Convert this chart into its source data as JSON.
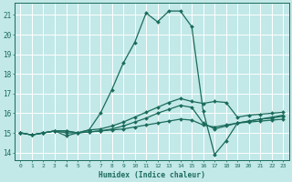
{
  "xlabel": "Humidex (Indice chaleur)",
  "background_color": "#c2e8e8",
  "grid_color": "#ffffff",
  "line_color": "#1a6b5a",
  "xlim": [
    -0.5,
    23.5
  ],
  "ylim": [
    13.6,
    21.6
  ],
  "yticks": [
    14,
    15,
    16,
    17,
    18,
    19,
    20,
    21
  ],
  "xticks": [
    0,
    1,
    2,
    3,
    4,
    5,
    6,
    7,
    8,
    9,
    10,
    11,
    12,
    13,
    14,
    15,
    16,
    17,
    18,
    19,
    20,
    21,
    22,
    23
  ],
  "curves": [
    {
      "x": [
        0,
        1,
        2,
        3,
        4,
        5,
        6,
        7,
        8,
        9,
        10,
        11,
        12,
        13,
        14,
        15,
        16,
        17,
        18,
        19,
        20,
        21,
        22,
        23
      ],
      "y": [
        15.0,
        14.9,
        15.0,
        15.1,
        15.0,
        15.0,
        15.05,
        15.1,
        15.15,
        15.2,
        15.3,
        15.4,
        15.5,
        15.6,
        15.7,
        15.65,
        15.4,
        15.3,
        15.4,
        15.5,
        15.55,
        15.6,
        15.65,
        15.7
      ],
      "marker": "D",
      "markersize": 2.0,
      "linewidth": 0.9
    },
    {
      "x": [
        0,
        1,
        2,
        3,
        4,
        5,
        6,
        7,
        8,
        9,
        10,
        11,
        12,
        13,
        14,
        15,
        16,
        17,
        18,
        19,
        20,
        21,
        22,
        23
      ],
      "y": [
        15.0,
        14.9,
        15.0,
        15.1,
        14.85,
        15.0,
        15.05,
        15.1,
        15.2,
        15.35,
        15.55,
        15.75,
        16.0,
        16.2,
        16.4,
        16.3,
        15.5,
        15.2,
        15.35,
        15.5,
        15.6,
        15.7,
        15.75,
        15.85
      ],
      "marker": "D",
      "markersize": 2.0,
      "linewidth": 0.9
    },
    {
      "x": [
        0,
        1,
        2,
        3,
        4,
        5,
        6,
        7,
        8,
        9,
        10,
        11,
        12,
        13,
        14,
        15,
        16,
        17,
        18,
        19,
        20,
        21,
        22,
        23
      ],
      "y": [
        15.0,
        14.9,
        15.0,
        15.1,
        15.1,
        15.0,
        15.15,
        16.0,
        17.2,
        18.55,
        19.6,
        21.1,
        20.65,
        21.2,
        21.2,
        20.4,
        16.1,
        13.9,
        14.6,
        15.5,
        15.6,
        15.7,
        15.8,
        15.9
      ],
      "marker": "D",
      "markersize": 2.0,
      "linewidth": 0.9
    },
    {
      "x": [
        0,
        1,
        2,
        3,
        4,
        5,
        6,
        7,
        8,
        9,
        10,
        11,
        12,
        13,
        14,
        15,
        16,
        17,
        18,
        19,
        20,
        21,
        22,
        23
      ],
      "y": [
        15.0,
        14.9,
        15.0,
        15.1,
        15.1,
        15.0,
        15.15,
        15.2,
        15.35,
        15.55,
        15.8,
        16.05,
        16.3,
        16.55,
        16.75,
        16.6,
        16.5,
        16.6,
        16.55,
        15.8,
        15.9,
        15.95,
        16.0,
        16.05
      ],
      "marker": "D",
      "markersize": 2.0,
      "linewidth": 0.9
    }
  ]
}
